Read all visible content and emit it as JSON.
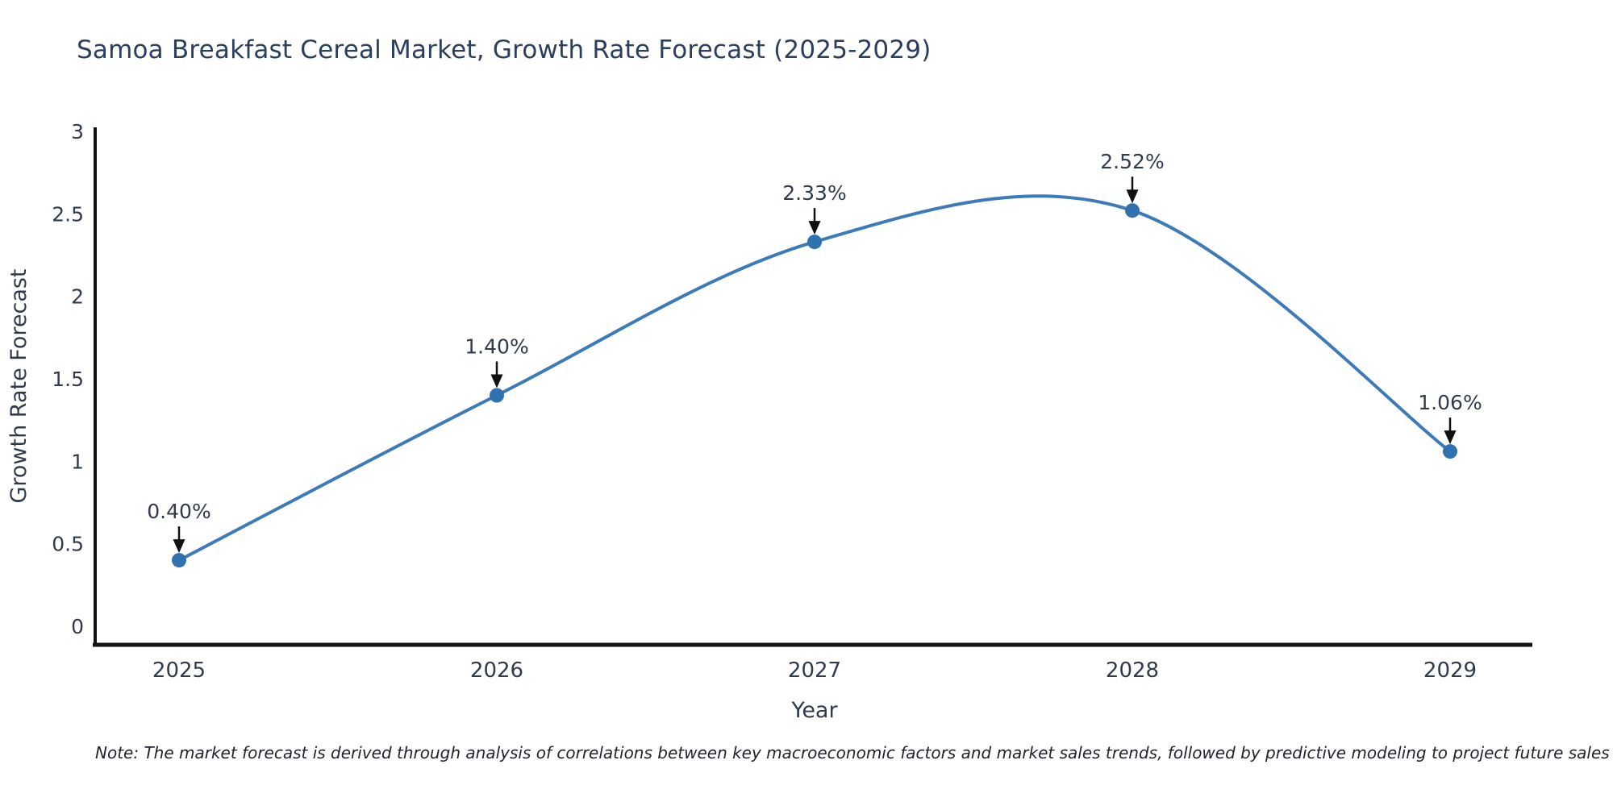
{
  "chart_data": {
    "type": "line",
    "title": "Samoa Breakfast Cereal Market, Growth Rate Forecast (2025-2029)",
    "xlabel": "Year",
    "ylabel": "Growth Rate Forecast",
    "categories": [
      "2025",
      "2026",
      "2027",
      "2028",
      "2029"
    ],
    "series": [
      {
        "name": "Growth Rate Forecast",
        "values": [
          0.4,
          1.4,
          2.33,
          2.52,
          1.06
        ],
        "point_labels": [
          "0.40%",
          "1.40%",
          "2.33%",
          "2.52%",
          "1.06%"
        ]
      }
    ],
    "ylim": [
      0,
      3
    ],
    "yticks": [
      0,
      0.5,
      1,
      1.5,
      2,
      2.5,
      3
    ],
    "ytick_labels": [
      "0",
      "0.5",
      "1",
      "1.5",
      "2",
      "2.5",
      "3"
    ],
    "line_shape": "spline",
    "grid": false,
    "legend": "none",
    "colors": {
      "line": "#3d7ab8",
      "marker": "#3072b0",
      "annotation_arrow": "#111111",
      "axis_line": "#111111",
      "title_text": "#2a3f5f",
      "tick_text": "#2f3b4c"
    }
  },
  "note": "Note: The market forecast is derived through analysis of correlations between key macroeconomic factors and market sales trends, followed by predictive modeling to project future sales"
}
